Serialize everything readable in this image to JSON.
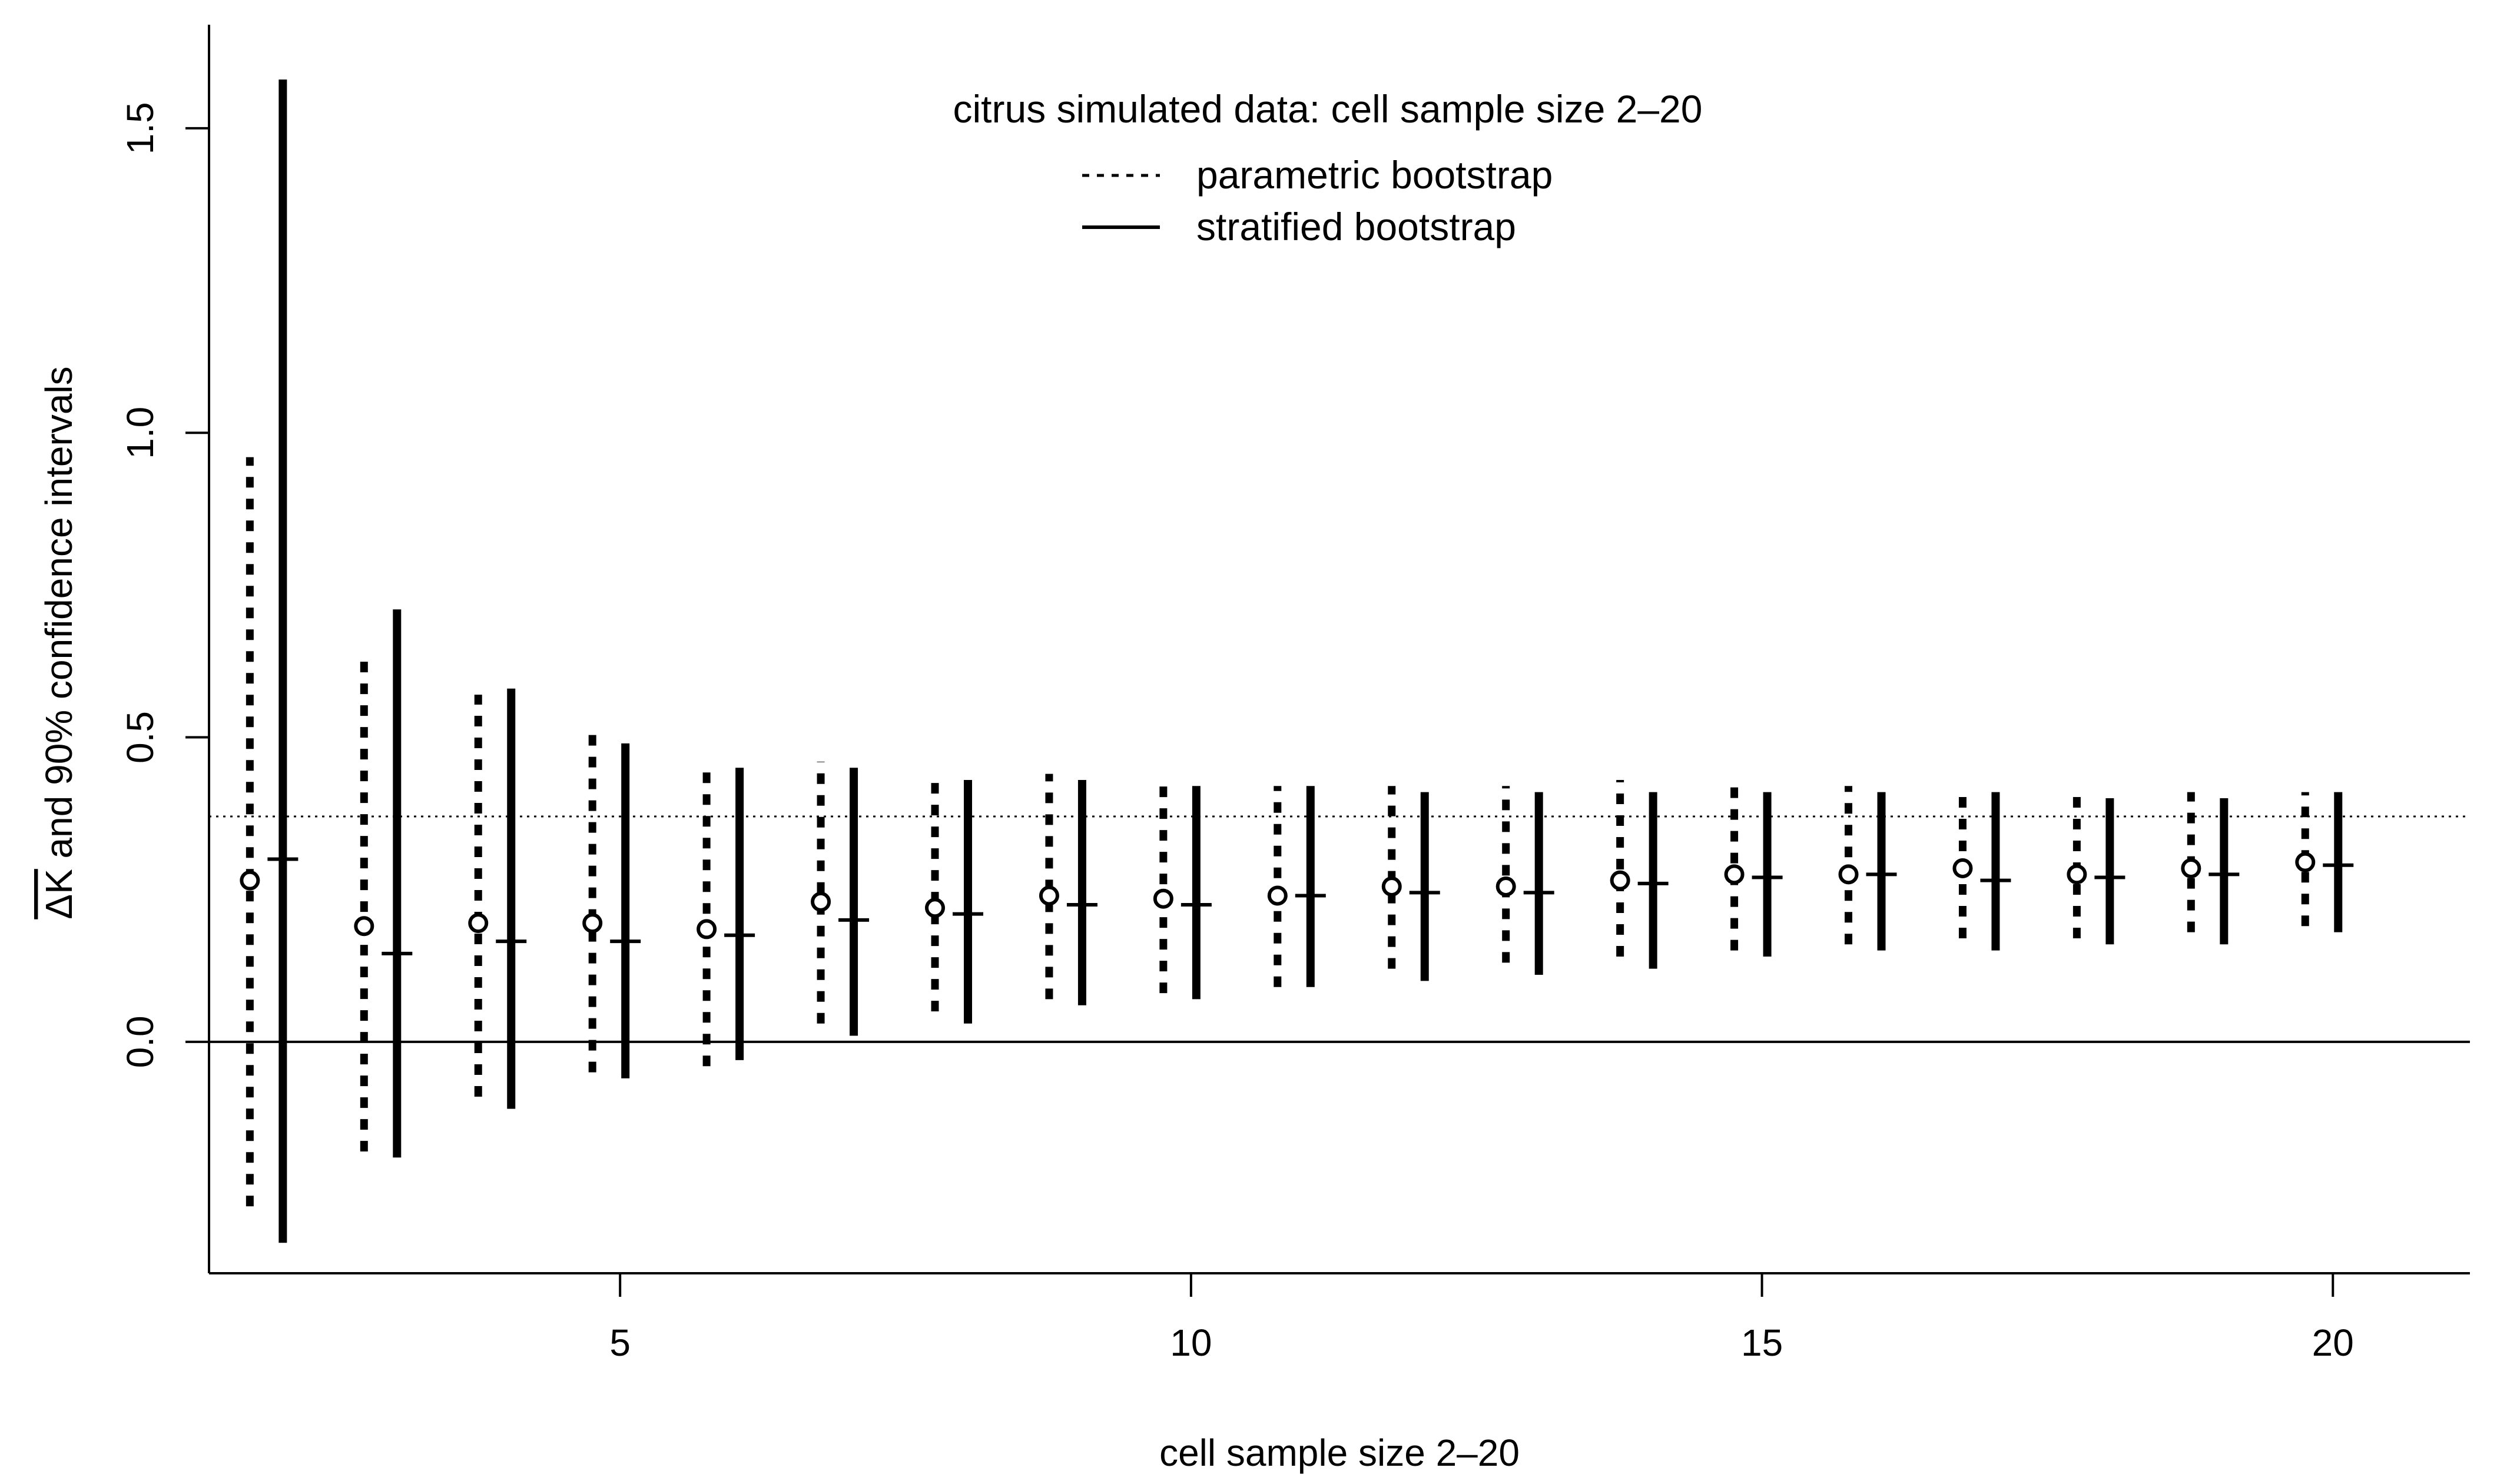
{
  "chart_data": {
    "type": "scatter",
    "legend_title": "citrus simulated data: cell sample size 2–20",
    "legend_placement": "top-center",
    "xlabel": "cell sample size 2–20",
    "ylabel_hat": "ΔK",
    "ylabel_rest": " and  90% confidence intervals",
    "xlim": [
      1.4,
      21.2
    ],
    "ylim": [
      -0.38,
      1.67
    ],
    "xticks": [
      5,
      10,
      15,
      20
    ],
    "yticks": [
      0.0,
      0.5,
      1.0,
      1.5
    ],
    "ytick_labels": [
      "0.0",
      "0.5",
      "1.0",
      "1.5"
    ],
    "reference_line_dotted": 0.37,
    "reference_line_solid": 0.0,
    "series": [
      {
        "name": "parametric bootstrap",
        "line_style": "dotted",
        "marker": "circle",
        "x": [
          2,
          3,
          4,
          5,
          6,
          7,
          8,
          9,
          10,
          11,
          12,
          13,
          14,
          15,
          16,
          17,
          18,
          19,
          20
        ],
        "estimate": [
          0.265,
          0.19,
          0.195,
          0.195,
          0.185,
          0.23,
          0.22,
          0.24,
          0.235,
          0.24,
          0.255,
          0.255,
          0.265,
          0.275,
          0.275,
          0.285,
          0.275,
          0.285,
          0.295
        ],
        "lower": [
          -0.27,
          -0.18,
          -0.09,
          -0.05,
          -0.04,
          0.03,
          0.05,
          0.07,
          0.08,
          0.09,
          0.12,
          0.13,
          0.14,
          0.15,
          0.16,
          0.17,
          0.17,
          0.18,
          0.19
        ],
        "upper": [
          0.96,
          0.63,
          0.57,
          0.51,
          0.46,
          0.46,
          0.44,
          0.44,
          0.43,
          0.42,
          0.42,
          0.42,
          0.43,
          0.42,
          0.42,
          0.42,
          0.41,
          0.41,
          0.41
        ]
      },
      {
        "name": "stratified bootstrap",
        "line_style": "solid",
        "marker": "dash",
        "x": [
          2,
          3,
          4,
          5,
          6,
          7,
          8,
          9,
          10,
          11,
          12,
          13,
          14,
          15,
          16,
          17,
          18,
          19,
          20
        ],
        "estimate": [
          0.3,
          0.145,
          0.165,
          0.165,
          0.175,
          0.2,
          0.21,
          0.225,
          0.225,
          0.24,
          0.245,
          0.245,
          0.26,
          0.27,
          0.275,
          0.265,
          0.27,
          0.275,
          0.29
        ],
        "lower": [
          -0.33,
          -0.19,
          -0.11,
          -0.06,
          -0.03,
          0.01,
          0.03,
          0.06,
          0.07,
          0.09,
          0.1,
          0.11,
          0.12,
          0.14,
          0.15,
          0.15,
          0.16,
          0.16,
          0.18
        ],
        "upper": [
          1.58,
          0.71,
          0.58,
          0.49,
          0.45,
          0.45,
          0.43,
          0.43,
          0.42,
          0.42,
          0.41,
          0.41,
          0.41,
          0.41,
          0.41,
          0.41,
          0.4,
          0.4,
          0.41
        ]
      }
    ]
  }
}
